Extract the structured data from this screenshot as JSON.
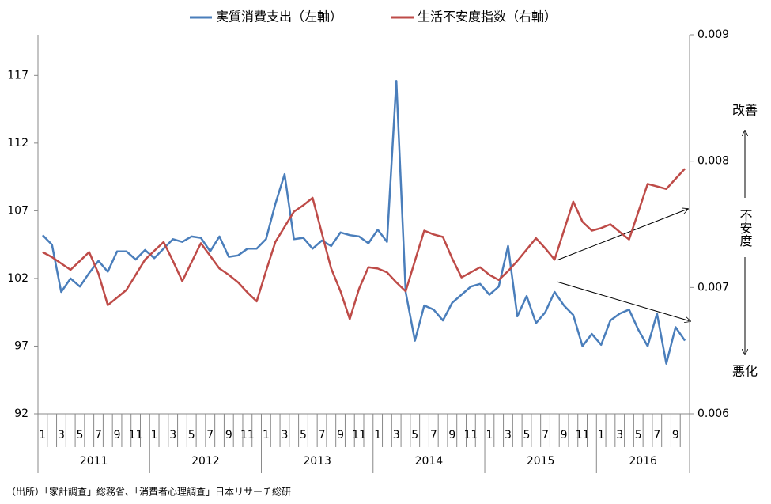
{
  "chart_data": {
    "type": "line",
    "categories": [
      "1",
      null,
      "3",
      null,
      "5",
      null,
      "7",
      null,
      "9",
      null,
      "11",
      null,
      "1",
      null,
      "3",
      null,
      "5",
      null,
      "7",
      null,
      "9",
      null,
      "11",
      null,
      "1",
      null,
      "3",
      null,
      "5",
      null,
      "7",
      null,
      "9",
      null,
      "11",
      null,
      "1",
      null,
      "3",
      null,
      "5",
      null,
      "7",
      null,
      "9",
      null,
      "11",
      null,
      "1",
      null,
      "3",
      null,
      "5",
      null,
      "7",
      null,
      "9",
      null,
      "11",
      null,
      "1",
      null,
      "3",
      null,
      "5",
      null,
      "7",
      null,
      "9",
      null
    ],
    "years": [
      2011,
      2012,
      2013,
      2014,
      2015,
      2016
    ],
    "series": [
      {
        "name": "実質消費支出（左軸）",
        "color": "#4a7ebb",
        "values": [
          105.2,
          104.5,
          101.0,
          102.0,
          101.4,
          102.4,
          103.3,
          102.5,
          104.0,
          104.0,
          103.4,
          104.1,
          103.5,
          104.2,
          104.9,
          104.7,
          105.1,
          105.0,
          104.0,
          105.1,
          103.6,
          103.7,
          104.2,
          104.2,
          104.9,
          107.5,
          109.7,
          104.9,
          105.0,
          104.2,
          104.8,
          104.4,
          105.4,
          105.2,
          105.1,
          104.6,
          105.6,
          104.7,
          116.6,
          101.0,
          97.4,
          100.0,
          99.7,
          98.9,
          100.2,
          100.8,
          101.4,
          101.6,
          100.8,
          101.4,
          104.4,
          99.2,
          100.7,
          98.7,
          99.5,
          101.0,
          100.0,
          99.3,
          97.0,
          97.9,
          97.1,
          98.9,
          99.4,
          99.7,
          98.2,
          97.0,
          99.4,
          95.7,
          98.4,
          97.4
        ]
      },
      {
        "name": "生活不安度指数（右軸）",
        "color": "#be4b48",
        "axis": "y2",
        "values": [
          0.00728,
          0.00724,
          0.00719,
          0.00714,
          0.00721,
          0.00728,
          0.00711,
          0.00686,
          0.00692,
          0.00698,
          0.0071,
          0.00722,
          0.00729,
          0.00736,
          0.00721,
          0.00705,
          0.0072,
          0.00735,
          0.00725,
          0.00715,
          0.0071,
          0.00704,
          0.00696,
          0.00689,
          0.00713,
          0.00736,
          0.00748,
          0.0076,
          0.00765,
          0.00771,
          0.00743,
          0.00715,
          0.00697,
          0.00675,
          0.00699,
          0.00716,
          0.00715,
          0.00712,
          0.00704,
          0.00697,
          0.00721,
          0.00745,
          0.00742,
          0.0074,
          0.00723,
          0.00708,
          0.00712,
          0.00716,
          0.0071,
          0.00706,
          0.00713,
          0.00721,
          0.0073,
          0.00739,
          0.00731,
          0.00722,
          0.00745,
          0.00768,
          0.00752,
          0.00745,
          0.00747,
          0.0075,
          0.00744,
          0.00738,
          0.0076,
          0.00782,
          0.0078,
          0.00778,
          0.00786,
          0.00794
        ]
      }
    ],
    "ylim": [
      92,
      120
    ],
    "yticks": [
      92,
      97,
      102,
      107,
      112,
      117
    ],
    "y2lim": [
      0.006,
      0.009
    ],
    "y2ticks": [
      0.006,
      0.007,
      0.008,
      0.009
    ],
    "annotations": [
      "改善",
      "不安度",
      "悪化"
    ],
    "source": "（出所）「家計調査」総務省、「消費者心理調査」日本リサーチ総研"
  }
}
